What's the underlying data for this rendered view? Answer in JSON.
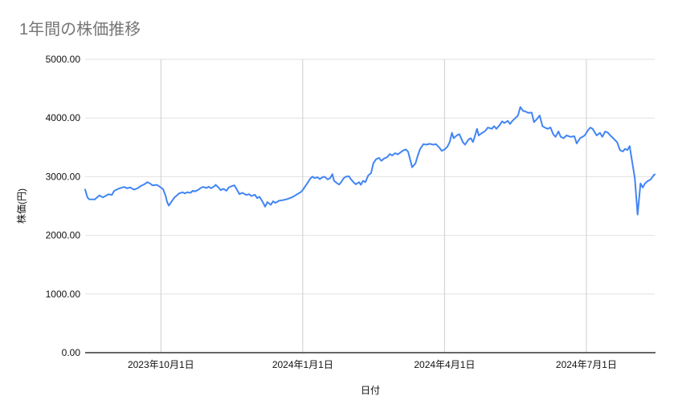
{
  "chart": {
    "title": "1年間の株価推移",
    "x_axis_title": "日付",
    "y_axis_title": "株価(円)"
  },
  "chart_data": {
    "type": "line",
    "title": "1年間の株価推移",
    "xlabel": "日付",
    "ylabel": "株価(円)",
    "ylim": [
      0,
      5000
    ],
    "grid": true,
    "legend": "none",
    "series_name": "株価",
    "series_color": "#4285f4",
    "y_ticks": [
      {
        "label": "0.00",
        "value": 0
      },
      {
        "label": "1000.00",
        "value": 1000
      },
      {
        "label": "2000.00",
        "value": 2000
      },
      {
        "label": "3000.00",
        "value": 3000
      },
      {
        "label": "4000.00",
        "value": 4000
      },
      {
        "label": "5000.00",
        "value": 5000
      }
    ],
    "x_ticks": [
      {
        "label": "2023年10月1日",
        "t": 0.133
      },
      {
        "label": "2024年1月1日",
        "t": 0.382
      },
      {
        "label": "2024年4月1日",
        "t": 0.631
      },
      {
        "label": "2024年7月1日",
        "t": 0.88
      }
    ],
    "points": [
      [
        0.0,
        2780
      ],
      [
        0.004,
        2648
      ],
      [
        0.007,
        2615
      ],
      [
        0.017,
        2612
      ],
      [
        0.025,
        2680
      ],
      [
        0.031,
        2648
      ],
      [
        0.041,
        2700
      ],
      [
        0.047,
        2690
      ],
      [
        0.051,
        2760
      ],
      [
        0.058,
        2793
      ],
      [
        0.065,
        2816
      ],
      [
        0.069,
        2825
      ],
      [
        0.073,
        2802
      ],
      [
        0.079,
        2816
      ],
      [
        0.086,
        2779
      ],
      [
        0.093,
        2807
      ],
      [
        0.097,
        2838
      ],
      [
        0.104,
        2870
      ],
      [
        0.109,
        2906
      ],
      [
        0.114,
        2884
      ],
      [
        0.118,
        2852
      ],
      [
        0.126,
        2861
      ],
      [
        0.133,
        2816
      ],
      [
        0.137,
        2784
      ],
      [
        0.141,
        2679
      ],
      [
        0.144,
        2566
      ],
      [
        0.147,
        2507
      ],
      [
        0.151,
        2566
      ],
      [
        0.157,
        2647
      ],
      [
        0.161,
        2679
      ],
      [
        0.165,
        2715
      ],
      [
        0.171,
        2734
      ],
      [
        0.175,
        2715
      ],
      [
        0.179,
        2734
      ],
      [
        0.185,
        2725
      ],
      [
        0.189,
        2761
      ],
      [
        0.193,
        2748
      ],
      [
        0.199,
        2779
      ],
      [
        0.203,
        2807
      ],
      [
        0.207,
        2825
      ],
      [
        0.213,
        2807
      ],
      [
        0.217,
        2829
      ],
      [
        0.221,
        2802
      ],
      [
        0.227,
        2838
      ],
      [
        0.229,
        2861
      ],
      [
        0.234,
        2816
      ],
      [
        0.238,
        2770
      ],
      [
        0.243,
        2793
      ],
      [
        0.248,
        2761
      ],
      [
        0.252,
        2816
      ],
      [
        0.257,
        2838
      ],
      [
        0.262,
        2852
      ],
      [
        0.267,
        2770
      ],
      [
        0.271,
        2702
      ],
      [
        0.276,
        2725
      ],
      [
        0.283,
        2688
      ],
      [
        0.288,
        2702
      ],
      [
        0.292,
        2670
      ],
      [
        0.298,
        2693
      ],
      [
        0.302,
        2634
      ],
      [
        0.306,
        2657
      ],
      [
        0.312,
        2566
      ],
      [
        0.316,
        2489
      ],
      [
        0.32,
        2566
      ],
      [
        0.326,
        2521
      ],
      [
        0.33,
        2580
      ],
      [
        0.334,
        2552
      ],
      [
        0.34,
        2589
      ],
      [
        0.347,
        2600
      ],
      [
        0.354,
        2615
      ],
      [
        0.361,
        2640
      ],
      [
        0.367,
        2668
      ],
      [
        0.372,
        2700
      ],
      [
        0.378,
        2732
      ],
      [
        0.382,
        2770
      ],
      [
        0.386,
        2830
      ],
      [
        0.391,
        2900
      ],
      [
        0.395,
        2965
      ],
      [
        0.399,
        3000
      ],
      [
        0.403,
        2975
      ],
      [
        0.408,
        2990
      ],
      [
        0.412,
        2958
      ],
      [
        0.416,
        2988
      ],
      [
        0.42,
        3000
      ],
      [
        0.426,
        2952
      ],
      [
        0.43,
        2975
      ],
      [
        0.434,
        3042
      ],
      [
        0.437,
        2930
      ],
      [
        0.441,
        2898
      ],
      [
        0.446,
        2865
      ],
      [
        0.45,
        2915
      ],
      [
        0.454,
        2975
      ],
      [
        0.458,
        3000
      ],
      [
        0.463,
        3007
      ],
      [
        0.467,
        2952
      ],
      [
        0.471,
        2906
      ],
      [
        0.475,
        2870
      ],
      [
        0.481,
        2906
      ],
      [
        0.484,
        2862
      ],
      [
        0.488,
        2929
      ],
      [
        0.492,
        2906
      ],
      [
        0.497,
        3020
      ],
      [
        0.502,
        3060
      ],
      [
        0.506,
        3230
      ],
      [
        0.511,
        3300
      ],
      [
        0.516,
        3320
      ],
      [
        0.52,
        3270
      ],
      [
        0.525,
        3310
      ],
      [
        0.53,
        3330
      ],
      [
        0.535,
        3385
      ],
      [
        0.539,
        3360
      ],
      [
        0.544,
        3400
      ],
      [
        0.549,
        3380
      ],
      [
        0.553,
        3410
      ],
      [
        0.559,
        3450
      ],
      [
        0.563,
        3465
      ],
      [
        0.567,
        3425
      ],
      [
        0.571,
        3280
      ],
      [
        0.574,
        3160
      ],
      [
        0.58,
        3225
      ],
      [
        0.584,
        3360
      ],
      [
        0.588,
        3470
      ],
      [
        0.594,
        3555
      ],
      [
        0.599,
        3545
      ],
      [
        0.605,
        3560
      ],
      [
        0.611,
        3545
      ],
      [
        0.616,
        3555
      ],
      [
        0.622,
        3495
      ],
      [
        0.626,
        3440
      ],
      [
        0.631,
        3462
      ],
      [
        0.636,
        3510
      ],
      [
        0.64,
        3590
      ],
      [
        0.644,
        3747
      ],
      [
        0.647,
        3655
      ],
      [
        0.652,
        3700
      ],
      [
        0.657,
        3724
      ],
      [
        0.663,
        3590
      ],
      [
        0.667,
        3545
      ],
      [
        0.673,
        3633
      ],
      [
        0.677,
        3656
      ],
      [
        0.681,
        3590
      ],
      [
        0.686,
        3747
      ],
      [
        0.688,
        3815
      ],
      [
        0.691,
        3702
      ],
      [
        0.697,
        3747
      ],
      [
        0.702,
        3775
      ],
      [
        0.707,
        3838
      ],
      [
        0.714,
        3815
      ],
      [
        0.718,
        3860
      ],
      [
        0.722,
        3815
      ],
      [
        0.728,
        3883
      ],
      [
        0.732,
        3942
      ],
      [
        0.736,
        3915
      ],
      [
        0.742,
        3951
      ],
      [
        0.746,
        3897
      ],
      [
        0.75,
        3951
      ],
      [
        0.756,
        4006
      ],
      [
        0.76,
        4042
      ],
      [
        0.764,
        4187
      ],
      [
        0.769,
        4120
      ],
      [
        0.773,
        4110
      ],
      [
        0.778,
        4087
      ],
      [
        0.784,
        4092
      ],
      [
        0.788,
        3929
      ],
      [
        0.794,
        3990
      ],
      [
        0.798,
        4042
      ],
      [
        0.803,
        3860
      ],
      [
        0.807,
        3838
      ],
      [
        0.812,
        3815
      ],
      [
        0.817,
        3838
      ],
      [
        0.822,
        3720
      ],
      [
        0.826,
        3679
      ],
      [
        0.831,
        3770
      ],
      [
        0.835,
        3679
      ],
      [
        0.84,
        3656
      ],
      [
        0.845,
        3702
      ],
      [
        0.852,
        3679
      ],
      [
        0.859,
        3688
      ],
      [
        0.863,
        3565
      ],
      [
        0.869,
        3656
      ],
      [
        0.873,
        3679
      ],
      [
        0.877,
        3702
      ],
      [
        0.883,
        3792
      ],
      [
        0.887,
        3838
      ],
      [
        0.891,
        3815
      ],
      [
        0.898,
        3702
      ],
      [
        0.904,
        3747
      ],
      [
        0.908,
        3679
      ],
      [
        0.913,
        3770
      ],
      [
        0.918,
        3747
      ],
      [
        0.922,
        3702
      ],
      [
        0.927,
        3656
      ],
      [
        0.934,
        3588
      ],
      [
        0.939,
        3452
      ],
      [
        0.944,
        3429
      ],
      [
        0.948,
        3474
      ],
      [
        0.952,
        3452
      ],
      [
        0.956,
        3520
      ],
      [
        0.96,
        3280
      ],
      [
        0.965,
        2980
      ],
      [
        0.97,
        2353
      ],
      [
        0.975,
        2884
      ],
      [
        0.979,
        2816
      ],
      [
        0.983,
        2884
      ],
      [
        0.987,
        2920
      ],
      [
        0.993,
        2952
      ],
      [
        0.997,
        3010
      ],
      [
        1.0,
        3040
      ]
    ]
  }
}
